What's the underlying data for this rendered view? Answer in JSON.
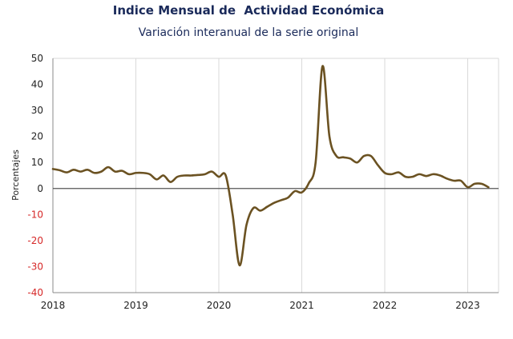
{
  "chart_data": {
    "type": "line",
    "title": "Indice Mensual de  Actividad Económica",
    "subtitle": "Variación interanual de la serie original",
    "ylabel": "Porcentajes",
    "xlabel": "",
    "ylim": [
      -40,
      50
    ],
    "xlim": [
      "2018-01",
      "2023-04"
    ],
    "yticks": [
      50,
      40,
      30,
      20,
      10,
      0,
      -10,
      -20,
      -30,
      -40
    ],
    "xticks": [
      "2018",
      "2019",
      "2020",
      "2021",
      "2022",
      "2023"
    ],
    "grid": "vertical",
    "colors": {
      "line": "#6b5222",
      "zero_line": "#555555",
      "grid": "#d9d9d9",
      "negative_tick": "#d62828"
    },
    "series": [
      {
        "x": [
          "2018-01",
          "2018-02",
          "2018-03",
          "2018-04",
          "2018-05",
          "2018-06",
          "2018-07",
          "2018-08",
          "2018-09",
          "2018-10",
          "2018-11",
          "2018-12",
          "2019-01",
          "2019-02",
          "2019-03",
          "2019-04",
          "2019-05",
          "2019-06",
          "2019-07",
          "2019-08",
          "2019-09",
          "2019-10",
          "2019-11",
          "2019-12",
          "2020-01",
          "2020-02",
          "2020-03",
          "2020-04",
          "2020-05",
          "2020-06",
          "2020-07",
          "2020-08",
          "2020-09",
          "2020-10",
          "2020-11",
          "2020-12",
          "2021-01",
          "2021-02",
          "2021-03",
          "2021-04",
          "2021-05",
          "2021-06",
          "2021-07",
          "2021-08",
          "2021-09",
          "2021-10",
          "2021-11",
          "2021-12",
          "2022-01",
          "2022-02",
          "2022-03",
          "2022-04",
          "2022-05",
          "2022-06",
          "2022-07",
          "2022-08",
          "2022-09",
          "2022-10",
          "2022-11",
          "2022-12",
          "2023-01",
          "2023-02",
          "2023-03",
          "2023-04"
        ],
        "values": [
          7.5,
          7.0,
          6.2,
          7.2,
          6.5,
          7.2,
          6.0,
          6.5,
          8.2,
          6.5,
          6.8,
          5.5,
          6.0,
          6.0,
          5.5,
          3.5,
          5.0,
          2.5,
          4.5,
          5.0,
          5.0,
          5.2,
          5.5,
          6.5,
          4.5,
          5.0,
          -10.0,
          -29.5,
          -14.0,
          -7.5,
          -8.5,
          -7.0,
          -5.5,
          -4.5,
          -3.5,
          -1.0,
          -1.5,
          2.0,
          10.0,
          47.0,
          20.0,
          12.5,
          12.0,
          11.5,
          10.0,
          12.5,
          12.5,
          9.0,
          6.0,
          5.5,
          6.2,
          4.5,
          4.5,
          5.5,
          4.8,
          5.5,
          5.0,
          3.8,
          3.0,
          3.0,
          0.5,
          1.8,
          1.8,
          0.5
        ]
      }
    ]
  }
}
